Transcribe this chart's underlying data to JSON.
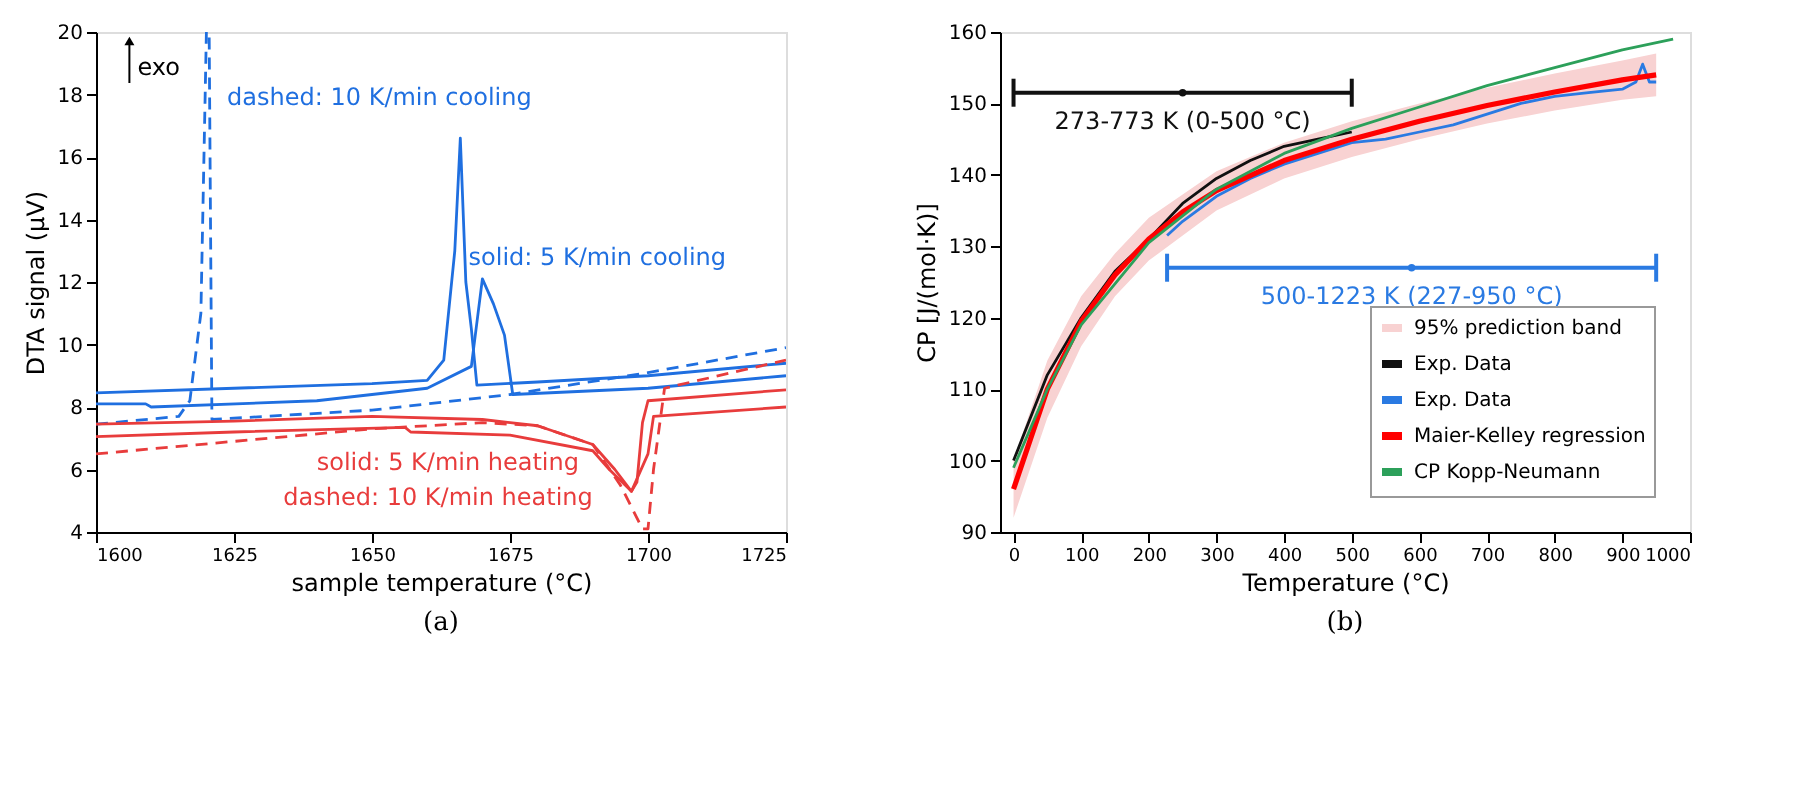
{
  "chart_data": [
    {
      "type": "line",
      "xlabel": "sample temperature (°C)",
      "ylabel": "DTA signal (µV)",
      "xlim": [
        1600,
        1725
      ],
      "xticks": [
        1600,
        1625,
        1650,
        1675,
        1700,
        1725
      ],
      "ylim": [
        4,
        20
      ],
      "yticks": [
        4,
        6,
        8,
        10,
        12,
        14,
        16,
        18,
        20
      ],
      "grid": false,
      "legend": false,
      "series": [
        {
          "color": "#1f6fe0",
          "line_style": "solid",
          "x": [
            1600,
            1625,
            1650,
            1660,
            1663,
            1665,
            1666,
            1667,
            1668,
            1669,
            1680,
            1700,
            1725
          ],
          "values": [
            8.45,
            8.6,
            8.75,
            8.85,
            9.5,
            13,
            16.6,
            12,
            10.5,
            8.7,
            8.8,
            9.0,
            9.4
          ]
        },
        {
          "color": "#1f6fe0",
          "line_style": "solid",
          "x": [
            1600,
            1609,
            1610,
            1640,
            1660,
            1668,
            1670,
            1672,
            1674,
            1675.5,
            1700,
            1725
          ],
          "values": [
            8.1,
            8.1,
            8.0,
            8.2,
            8.6,
            9.3,
            12.1,
            11.3,
            10.3,
            8.4,
            8.6,
            9.0
          ]
        },
        {
          "color": "#1f6fe0",
          "line_style": "dashed",
          "x": [
            1600,
            1615,
            1617,
            1619,
            1620,
            1620.5,
            1621,
            1650,
            1675,
            1700,
            1725
          ],
          "values": [
            7.45,
            7.7,
            8.2,
            11,
            20,
            20,
            7.6,
            7.9,
            8.4,
            9.1,
            9.9
          ]
        },
        {
          "color": "#e83c3c",
          "line_style": "solid",
          "x": [
            1600,
            1625,
            1650,
            1670,
            1680,
            1690,
            1694,
            1697,
            1698,
            1699,
            1700,
            1725
          ],
          "values": [
            7.45,
            7.55,
            7.7,
            7.6,
            7.4,
            6.8,
            6.0,
            5.3,
            5.6,
            7.5,
            8.2,
            8.55
          ]
        },
        {
          "color": "#e83c3c",
          "line_style": "solid",
          "x": [
            1600,
            1625,
            1656,
            1657,
            1675,
            1690,
            1693,
            1697,
            1700,
            1701,
            1725
          ],
          "values": [
            7.05,
            7.2,
            7.35,
            7.2,
            7.1,
            6.6,
            6.0,
            5.3,
            6.5,
            7.7,
            8.0
          ]
        },
        {
          "color": "#e83c3c",
          "line_style": "dashed",
          "x": [
            1600,
            1625,
            1650,
            1670,
            1680,
            1690,
            1695,
            1699,
            1700,
            1701,
            1703,
            1725
          ],
          "values": [
            6.5,
            6.9,
            7.3,
            7.5,
            7.4,
            6.8,
            5.5,
            4.1,
            4.1,
            6.0,
            8.6,
            9.5
          ]
        }
      ],
      "annotations": [
        "exo",
        "dashed: 10 K/min cooling",
        "solid: 5 K/min cooling",
        "solid: 5 K/min heating",
        "dashed: 10 K/min heating",
        "(a)"
      ]
    },
    {
      "type": "line",
      "xlabel": "Temperature (°C)",
      "ylabel": "CP [J/(mol·K)]",
      "xlim": [
        -20,
        1000
      ],
      "xticks": [
        0,
        100,
        200,
        300,
        400,
        500,
        600,
        700,
        800,
        900,
        1000
      ],
      "ylim": [
        90,
        160
      ],
      "yticks": [
        90,
        100,
        110,
        120,
        130,
        140,
        150,
        160
      ],
      "grid": false,
      "legend": "bottom right",
      "series": [
        {
          "name": "95% prediction band",
          "type": "area",
          "color": "#f8d2d2",
          "x": [
            0,
            50,
            100,
            150,
            200,
            300,
            400,
            500,
            600,
            700,
            800,
            900,
            950
          ],
          "values": [
            null,
            null,
            null,
            null,
            null,
            null,
            null,
            null,
            null,
            null,
            null,
            null,
            null
          ],
          "lower": [
            92,
            106,
            116,
            123,
            128,
            135,
            139.5,
            142.5,
            145,
            147.2,
            149,
            150.5,
            151
          ],
          "upper": [
            100,
            114,
            123,
            129,
            134,
            140.5,
            144.5,
            147.5,
            150,
            152.2,
            154.2,
            156,
            157
          ]
        },
        {
          "name": "Exp. Data",
          "color": "#111111",
          "x": [
            0,
            50,
            100,
            150,
            200,
            220,
            250,
            300,
            350,
            400,
            450,
            500
          ],
          "values": [
            100,
            112,
            120,
            126.5,
            131,
            133,
            136,
            139.5,
            142,
            144,
            145,
            146
          ]
        },
        {
          "name": "Exp. Data",
          "color": "#2a7ae2",
          "x": [
            227,
            250,
            300,
            350,
            400,
            450,
            500,
            550,
            600,
            650,
            700,
            750,
            800,
            850,
            900,
            920,
            930,
            940,
            950
          ],
          "values": [
            131.5,
            133.5,
            137,
            139.5,
            141.5,
            143,
            144.5,
            145,
            146,
            147,
            148.5,
            150,
            151,
            151.5,
            152,
            153,
            155.5,
            153,
            153
          ]
        },
        {
          "name": "Maier-Kelley regression",
          "color": "#ff0000",
          "x": [
            0,
            25,
            50,
            100,
            150,
            200,
            250,
            300,
            400,
            500,
            600,
            700,
            800,
            900,
            950
          ],
          "values": [
            96,
            103,
            110,
            119.5,
            126,
            131,
            134.8,
            137.8,
            142,
            145,
            147.5,
            149.7,
            151.6,
            153.3,
            154
          ]
        },
        {
          "name": "CP Kopp-Neumann",
          "color": "#2ca05a",
          "x": [
            0,
            50,
            100,
            200,
            300,
            400,
            500,
            600,
            700,
            800,
            900,
            975
          ],
          "values": [
            99,
            110,
            119,
            130.5,
            138,
            143,
            146.5,
            149.5,
            152.5,
            155,
            157.5,
            159
          ]
        },
        {
          "type": "scatter",
          "marker": "circle",
          "color": "#111111",
          "x": [
            250
          ],
          "values": [
            151.5
          ],
          "xerrors": [
            [
              0,
              500
            ]
          ]
        },
        {
          "type": "scatter",
          "marker": "circle",
          "color": "#2a7ae2",
          "x": [
            588.5
          ],
          "values": [
            127
          ],
          "xerrors": [
            [
              227,
              950
            ]
          ]
        }
      ],
      "annotations": [
        {
          "text": "273-773 K (0-500 °C)",
          "x": 250,
          "y": 151.5
        },
        {
          "text": "500-1223 K (227-950 °C)",
          "x": 588.5,
          "y": 127
        },
        "(b)"
      ]
    }
  ]
}
